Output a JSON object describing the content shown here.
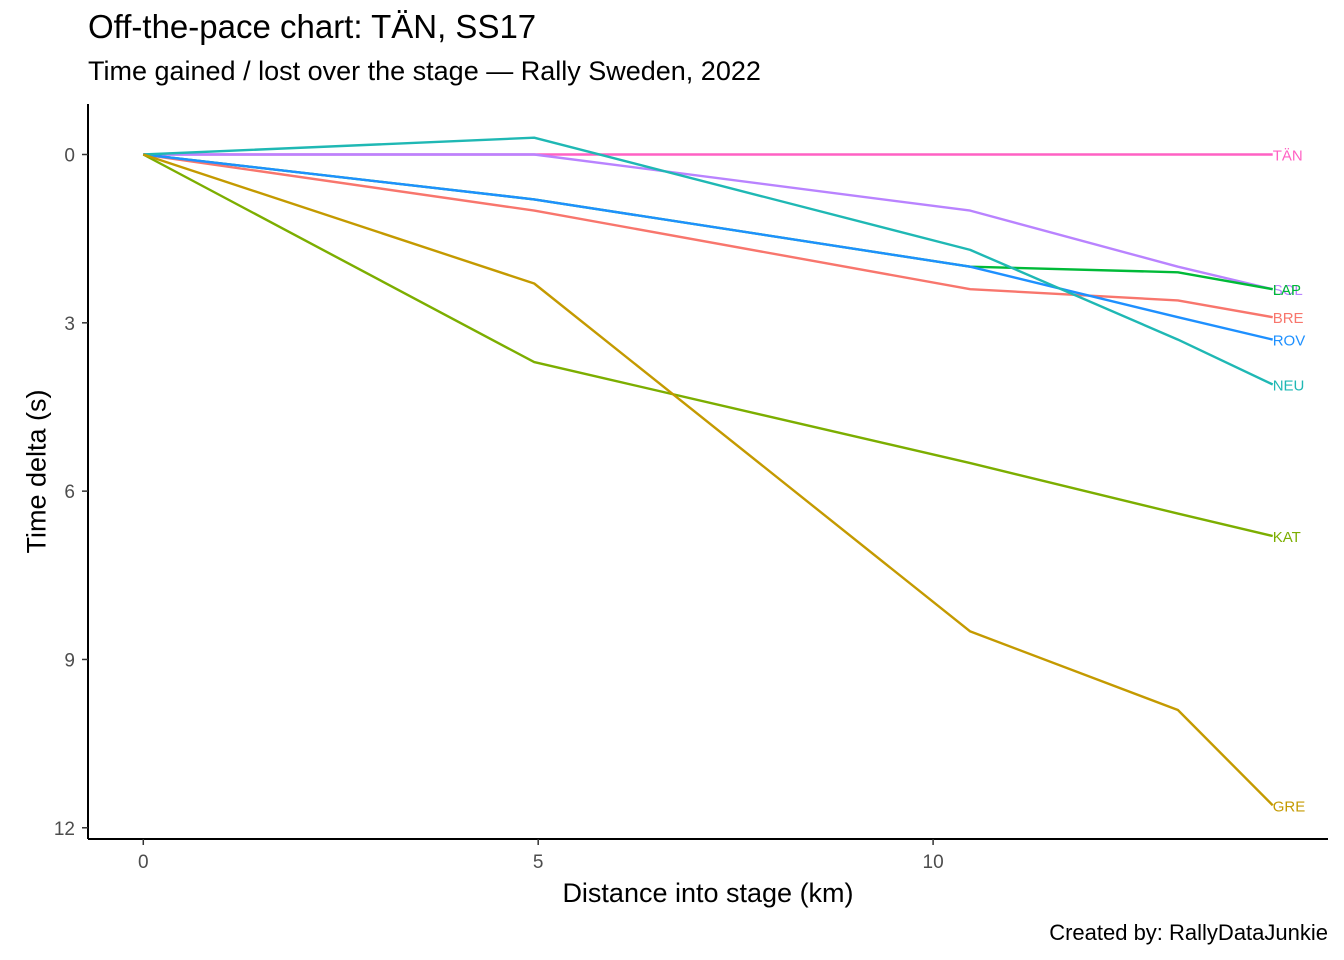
{
  "chart_data": {
    "type": "line",
    "title": "Off-the-pace chart: TÄN, SS17",
    "subtitle": "Time gained / lost over the stage — Rally Sweden, 2022",
    "caption": "Created by: RallyDataJunkie",
    "xlabel": "Distance into stage (km)",
    "ylabel": "Time delta (s)",
    "xlim": [
      -0.7,
      15.0
    ],
    "ylim": [
      12.2,
      -0.9
    ],
    "y_reversed": true,
    "x_ticks": [
      0,
      5,
      10
    ],
    "y_ticks": [
      0,
      3,
      6,
      9,
      12
    ],
    "grid": false,
    "legend": "none (direct labels at line ends)",
    "series": [
      {
        "name": "TÄN",
        "color": "#FF61C3",
        "x": [
          0,
          4.95,
          10.47,
          13.1,
          14.3
        ],
        "y": [
          0,
          0,
          0,
          0,
          0
        ]
      },
      {
        "name": "SOL",
        "color": "#B983FF",
        "x": [
          0,
          4.95,
          10.47,
          13.1,
          14.3
        ],
        "y": [
          0,
          0,
          1.0,
          2.0,
          2.4
        ]
      },
      {
        "name": "LAP",
        "color": "#00BA38",
        "x": [
          0,
          4.95,
          10.47,
          13.1,
          14.3
        ],
        "y": [
          0,
          0.8,
          2.0,
          2.1,
          2.4
        ]
      },
      {
        "name": "BRE",
        "color": "#F8766D",
        "x": [
          0,
          4.95,
          10.47,
          13.1,
          14.3
        ],
        "y": [
          0,
          1.0,
          2.4,
          2.6,
          2.9
        ]
      },
      {
        "name": "ROV",
        "color": "#1E90FF",
        "x": [
          0,
          4.95,
          10.47,
          13.1,
          14.3
        ],
        "y": [
          0,
          0.8,
          2.0,
          2.9,
          3.3
        ]
      },
      {
        "name": "NEU",
        "color": "#1FB8B4",
        "x": [
          0,
          4.95,
          10.47,
          13.1,
          14.3
        ],
        "y": [
          0,
          -0.3,
          1.7,
          3.3,
          4.1
        ]
      },
      {
        "name": "KAT",
        "color": "#7CAE00",
        "x": [
          0,
          4.95,
          10.47,
          13.1,
          14.3
        ],
        "y": [
          0,
          3.7,
          5.5,
          6.4,
          6.8
        ]
      },
      {
        "name": "GRE",
        "color": "#C49A00",
        "x": [
          0,
          4.95,
          10.47,
          13.1,
          14.3
        ],
        "y": [
          0,
          2.3,
          8.5,
          9.9,
          11.6
        ]
      }
    ]
  }
}
